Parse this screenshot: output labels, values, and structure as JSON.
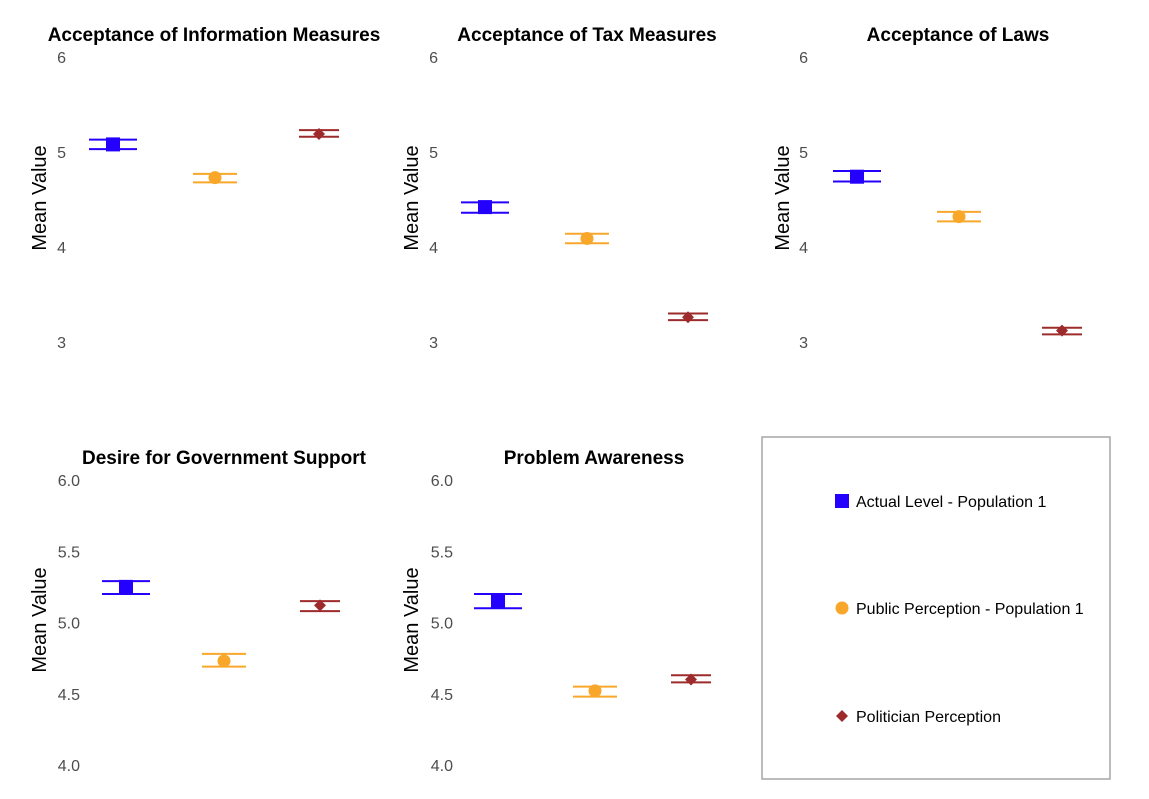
{
  "chart_data": [
    {
      "type": "scatter",
      "title": "Acceptance of Information Measures",
      "xlabel": "",
      "ylabel": "Mean Value",
      "ylim": [
        2.6,
        6.1
      ],
      "yticks": [
        "3",
        "4",
        "5",
        "6"
      ],
      "ytick_values": [
        3,
        4,
        5,
        6
      ],
      "series": [
        {
          "name": "Actual Level - Population 1",
          "value": 5.08,
          "lower": 5.03,
          "upper": 5.13
        },
        {
          "name": "Public Perception - Population 1",
          "value": 4.73,
          "lower": 4.68,
          "upper": 4.77
        },
        {
          "name": "Politician Perception",
          "value": 5.19,
          "lower": 5.16,
          "upper": 5.23
        }
      ]
    },
    {
      "type": "scatter",
      "title": "Acceptance of Tax Measures",
      "xlabel": "",
      "ylabel": "Mean Value",
      "ylim": [
        2.6,
        6.1
      ],
      "yticks": [
        "3",
        "4",
        "5",
        "6"
      ],
      "ytick_values": [
        3,
        4,
        5,
        6
      ],
      "series": [
        {
          "name": "Actual Level - Population 1",
          "value": 4.42,
          "lower": 4.36,
          "upper": 4.47
        },
        {
          "name": "Public Perception - Population 1",
          "value": 4.09,
          "lower": 4.04,
          "upper": 4.14
        },
        {
          "name": "Politician Perception",
          "value": 3.26,
          "lower": 3.23,
          "upper": 3.3
        }
      ]
    },
    {
      "type": "scatter",
      "title": "Acceptance of Laws",
      "xlabel": "",
      "ylabel": "Mean Value",
      "ylim": [
        2.6,
        6.1
      ],
      "yticks": [
        "3",
        "4",
        "5",
        "6"
      ],
      "ytick_values": [
        3,
        4,
        5,
        6
      ],
      "series": [
        {
          "name": "Actual Level - Population 1",
          "value": 4.74,
          "lower": 4.69,
          "upper": 4.8
        },
        {
          "name": "Public Perception - Population 1",
          "value": 4.32,
          "lower": 4.27,
          "upper": 4.37
        },
        {
          "name": "Politician Perception",
          "value": 3.12,
          "lower": 3.08,
          "upper": 3.15
        }
      ]
    },
    {
      "type": "scatter",
      "title": "Desire for Government Support",
      "xlabel": "",
      "ylabel": "Mean Value",
      "ylim": [
        3.9,
        6.05
      ],
      "yticks": [
        "4.0",
        "4.5",
        "5.0",
        "5.5",
        "6.0"
      ],
      "ytick_values": [
        4.0,
        4.5,
        5.0,
        5.5,
        6.0
      ],
      "series": [
        {
          "name": "Actual Level - Population 1",
          "value": 5.25,
          "lower": 5.2,
          "upper": 5.29
        },
        {
          "name": "Public Perception - Population 1",
          "value": 4.73,
          "lower": 4.69,
          "upper": 4.78
        },
        {
          "name": "Politician Perception",
          "value": 5.12,
          "lower": 5.08,
          "upper": 5.15
        }
      ]
    },
    {
      "type": "scatter",
      "title": "Problem Awareness",
      "xlabel": "",
      "ylabel": "Mean Value",
      "ylim": [
        3.9,
        6.05
      ],
      "yticks": [
        "4.0",
        "4.5",
        "5.0",
        "5.5",
        "6.0"
      ],
      "ytick_values": [
        4.0,
        4.5,
        5.0,
        5.5,
        6.0
      ],
      "series": [
        {
          "name": "Actual Level - Population 1",
          "value": 5.15,
          "lower": 5.1,
          "upper": 5.2
        },
        {
          "name": "Public Perception - Population 1",
          "value": 4.52,
          "lower": 4.48,
          "upper": 4.55
        },
        {
          "name": "Politician Perception",
          "value": 4.6,
          "lower": 4.58,
          "upper": 4.63
        }
      ]
    }
  ],
  "legend": {
    "placement": "bottom-right",
    "items": [
      {
        "label": "Actual Level - Population 1",
        "shape": "square",
        "color": "#2400ff"
      },
      {
        "label": "Public Perception - Population 1",
        "shape": "circle",
        "color": "#f9a72b"
      },
      {
        "label": "Politician Perception",
        "shape": "diamond",
        "color": "#9e2b2b"
      }
    ]
  },
  "colors": {
    "actual": "#2400ff",
    "public": "#f9a72b",
    "politician": "#9e2b2b",
    "legend_border": "#a6a6a6"
  },
  "grid": false
}
